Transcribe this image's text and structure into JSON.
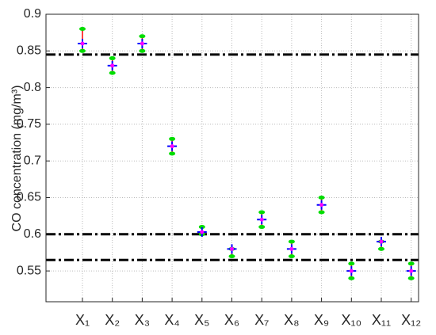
{
  "chart_data": {
    "type": "errorbar",
    "ylabel": "CO concentration (mg/m³)",
    "categories": [
      "X₁",
      "X₂",
      "X₃",
      "X₄",
      "X₅",
      "X₆",
      "X₇",
      "X₈",
      "X₉",
      "X₁₀",
      "X₁₁",
      "X₁₂"
    ],
    "series": [
      {
        "values": [
          0.86,
          0.83,
          0.86,
          0.72,
          0.603,
          0.58,
          0.62,
          0.58,
          0.64,
          0.55,
          0.59,
          0.55
        ],
        "lower": [
          0.85,
          0.82,
          0.85,
          0.71,
          0.6,
          0.57,
          0.61,
          0.57,
          0.63,
          0.54,
          0.58,
          0.54
        ],
        "upper": [
          0.88,
          0.84,
          0.87,
          0.73,
          0.61,
          0.58,
          0.63,
          0.59,
          0.65,
          0.56,
          0.59,
          0.56
        ],
        "color": "#0000ff",
        "bar_color": "#ff0000",
        "cap_color": "#00dd00",
        "center_color": "#ff00ff"
      }
    ],
    "reference_lines": [
      0.845,
      0.6,
      0.565
    ],
    "ylim": [
      0.508,
      0.9
    ],
    "yticks": [
      0.55,
      0.6,
      0.65,
      0.7,
      0.75,
      0.8,
      0.85,
      0.9
    ],
    "grid": true
  }
}
